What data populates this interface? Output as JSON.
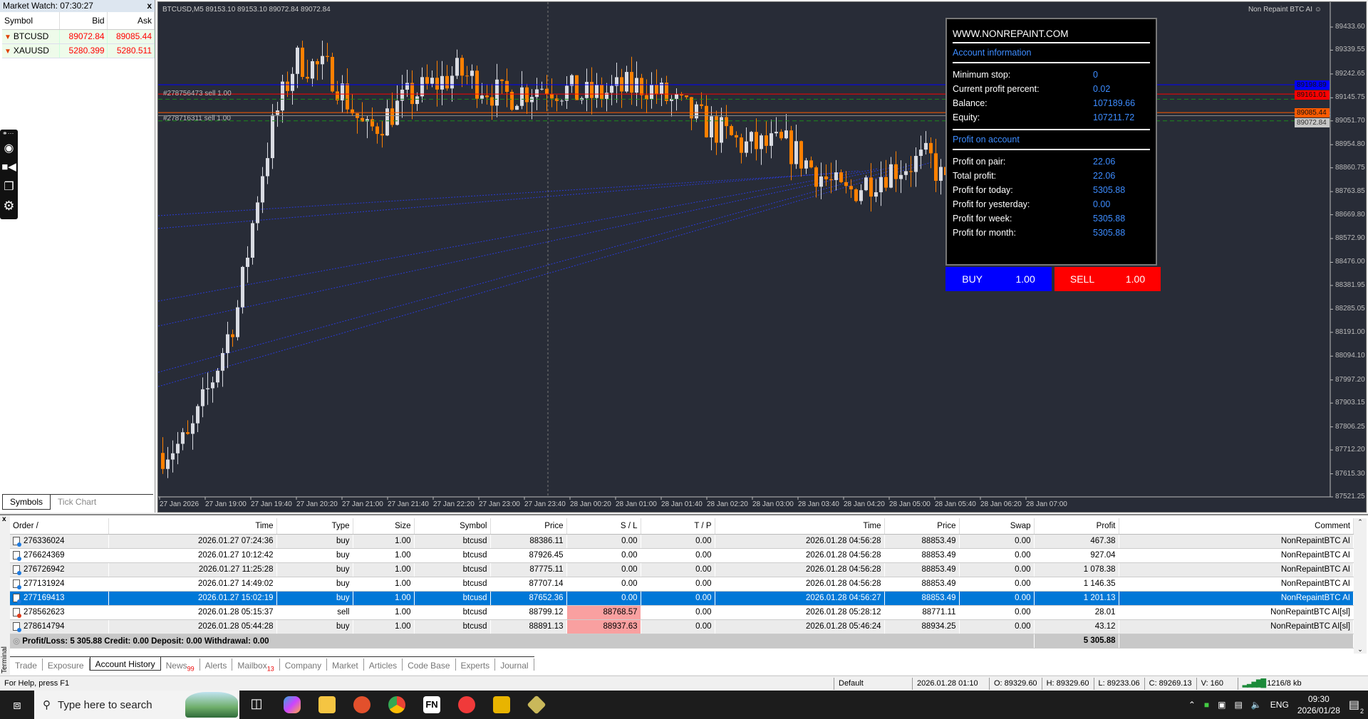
{
  "market_watch": {
    "title": "Market Watch: 07:30:27",
    "close": "x",
    "headers": [
      "Symbol",
      "Bid",
      "Ask"
    ],
    "rows": [
      {
        "symbol": "BTCUSD",
        "bid": "89072.84",
        "ask": "89085.44"
      },
      {
        "symbol": "XAUUSD",
        "bid": "5280.399",
        "ask": "5280.511"
      }
    ],
    "tabs": [
      "Symbols",
      "Tick Chart"
    ]
  },
  "chart": {
    "ohlc": "BTCUSD,M5  89153.10 89153.10 89072.84 89072.84",
    "ea_name": "Non Repaint BTC AI",
    "order_labels": [
      "#278756473 sell 1.00",
      "#278716311 sell 1.00"
    ],
    "price_axis": [
      "89433.60",
      "89339.55",
      "89242.65",
      "89145.75",
      "89051.70",
      "88954.80",
      "88860.75",
      "88763.85",
      "88669.80",
      "88572.90",
      "88476.00",
      "88381.95",
      "88285.05",
      "88191.00",
      "88094.10",
      "87997.20",
      "87903.15",
      "87806.25",
      "87712.20",
      "87615.30",
      "87521.25"
    ],
    "price_tags": [
      {
        "value": "89198.89",
        "color": "#0000ff"
      },
      {
        "value": "89161.01",
        "color": "#ff0000"
      },
      {
        "value": "89085.44",
        "color": "#ff5a00"
      },
      {
        "value": "89072.84",
        "color": "#c8c8c8"
      }
    ],
    "time_axis": [
      "27 Jan 2026",
      "27 Jan 19:00",
      "27 Jan 19:40",
      "27 Jan 20:20",
      "27 Jan 21:00",
      "27 Jan 21:40",
      "27 Jan 22:20",
      "27 Jan 23:00",
      "27 Jan 23:40",
      "28 Jan 00:20",
      "28 Jan 01:00",
      "28 Jan 01:40",
      "28 Jan 02:20",
      "28 Jan 03:00",
      "28 Jan 03:40",
      "28 Jan 04:20",
      "28 Jan 05:00",
      "28 Jan 05:40",
      "28 Jan 06:20",
      "28 Jan 07:00"
    ],
    "colors": {
      "bull": "#d9dbe2",
      "bear": "#ff8000",
      "background": "#282c37"
    }
  },
  "panel": {
    "site": "WWW.NONREPAINT.COM",
    "account_header": "Account information",
    "account": [
      {
        "label": "Minimum stop:",
        "value": "0"
      },
      {
        "label": "Current profit percent:",
        "value": "0.02"
      },
      {
        "label": "Balance:",
        "value": "107189.66"
      },
      {
        "label": "Equity:",
        "value": "107211.72"
      }
    ],
    "profit_header": "Profit on account",
    "profit": [
      {
        "label": "Profit on pair:",
        "value": "22.06"
      },
      {
        "label": "Total profit:",
        "value": "22.06"
      },
      {
        "label": "Profit for today:",
        "value": "5305.88"
      },
      {
        "label": "Profit for yesterday:",
        "value": "0.00"
      },
      {
        "label": "Profit for week:",
        "value": "5305.88"
      },
      {
        "label": "Profit for month:",
        "value": "5305.88"
      }
    ],
    "buy": {
      "label": "BUY",
      "lots": "1.00"
    },
    "sell": {
      "label": "SELL",
      "lots": "1.00"
    }
  },
  "terminal": {
    "side_label": "Terminal",
    "close": "x",
    "headers": [
      "Order  /",
      "Time",
      "Type",
      "Size",
      "Symbol",
      "Price",
      "S / L",
      "T / P",
      "Time",
      "Price",
      "Swap",
      "Profit",
      "Comment"
    ],
    "rows": [
      [
        "276336024",
        "2026.01.27 07:24:36",
        "buy",
        "1.00",
        "btcusd",
        "88386.11",
        "0.00",
        "0.00",
        "2026.01.28 04:56:28",
        "88853.49",
        "0.00",
        "467.38",
        "NonRepaintBTC AI"
      ],
      [
        "276624369",
        "2026.01.27 10:12:42",
        "buy",
        "1.00",
        "btcusd",
        "87926.45",
        "0.00",
        "0.00",
        "2026.01.28 04:56:28",
        "88853.49",
        "0.00",
        "927.04",
        "NonRepaintBTC AI"
      ],
      [
        "276726942",
        "2026.01.27 11:25:28",
        "buy",
        "1.00",
        "btcusd",
        "87775.11",
        "0.00",
        "0.00",
        "2026.01.28 04:56:28",
        "88853.49",
        "0.00",
        "1 078.38",
        "NonRepaintBTC AI"
      ],
      [
        "277131924",
        "2026.01.27 14:49:02",
        "buy",
        "1.00",
        "btcusd",
        "87707.14",
        "0.00",
        "0.00",
        "2026.01.28 04:56:28",
        "88853.49",
        "0.00",
        "1 146.35",
        "NonRepaintBTC AI"
      ],
      [
        "277169413",
        "2026.01.27 15:02:19",
        "buy",
        "1.00",
        "btcusd",
        "87652.36",
        "0.00",
        "0.00",
        "2026.01.28 04:56:27",
        "88853.49",
        "0.00",
        "1 201.13",
        "NonRepaintBTC AI"
      ],
      [
        "278562623",
        "2026.01.28 05:15:37",
        "sell",
        "1.00",
        "btcusd",
        "88799.12",
        "88768.57",
        "0.00",
        "2026.01.28 05:28:12",
        "88771.11",
        "0.00",
        "28.01",
        "NonRepaintBTC AI[sl]"
      ],
      [
        "278614794",
        "2026.01.28 05:44:28",
        "buy",
        "1.00",
        "btcusd",
        "88891.13",
        "88937.63",
        "0.00",
        "2026.01.28 05:46:24",
        "88934.25",
        "0.00",
        "43.12",
        "NonRepaintBTC AI[sl]"
      ]
    ],
    "selected_row": 4,
    "summary": "Profit/Loss: 5 305.88  Credit: 0.00  Deposit: 0.00  Withdrawal: 0.00",
    "summary_total": "5 305.88",
    "tabs": [
      {
        "label": "Trade"
      },
      {
        "label": "Exposure"
      },
      {
        "label": "Account History",
        "active": true
      },
      {
        "label": "News",
        "badge": "99"
      },
      {
        "label": "Alerts"
      },
      {
        "label": "Mailbox",
        "badge": "13"
      },
      {
        "label": "Company"
      },
      {
        "label": "Market"
      },
      {
        "label": "Articles"
      },
      {
        "label": "Code Base"
      },
      {
        "label": "Experts"
      },
      {
        "label": "Journal"
      }
    ]
  },
  "status": {
    "help": "For Help, press F1",
    "profile": "Default",
    "time": "2026.01.28 01:10",
    "open": "O: 89329.60",
    "high": "H: 89329.60",
    "low": "L: 89233.06",
    "close": "C: 89269.13",
    "volume": "V: 160",
    "traffic": "1216/8 kb"
  },
  "taskbar": {
    "search_placeholder": "Type here to search",
    "lang": "ENG",
    "clock": "09:30",
    "date": "2026/01/28",
    "notifications": "2"
  }
}
